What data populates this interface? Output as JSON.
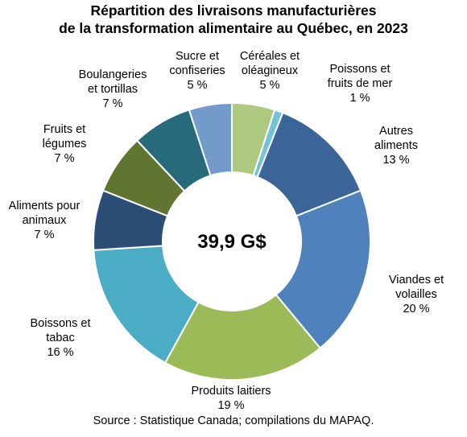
{
  "title_line1": "Répartition des livraisons manufacturières",
  "title_line2": "de la transformation alimentaire au Québec, en 2023",
  "source": "Source : Statistique Canada; compilations du MAPAQ.",
  "chart_data": {
    "type": "pie",
    "donut": true,
    "center_label": "39,9 G$",
    "start_angle_deg": 0,
    "direction": "clockwise",
    "slices": [
      {
        "label": [
          "Céréales et",
          "oléagineux",
          "5 %"
        ],
        "value": 5,
        "color": "#adc97f"
      },
      {
        "label": [
          "Poissons et",
          "fruits de mer",
          "1 %"
        ],
        "value": 1,
        "color": "#72c2d8"
      },
      {
        "label": [
          "Autres",
          "aliments",
          "13 %"
        ],
        "value": 13,
        "color": "#3b6499"
      },
      {
        "label": [
          "Viandes et",
          "volailles",
          "20 %"
        ],
        "value": 20,
        "color": "#4f81bd"
      },
      {
        "label": [
          "Produits laitiers",
          "19 %"
        ],
        "value": 19,
        "color": "#9bbb59"
      },
      {
        "label": [
          "Boissons et",
          "tabac",
          "16 %"
        ],
        "value": 16,
        "color": "#4bacc6"
      },
      {
        "label": [
          "Aliments pour",
          "animaux",
          "7 %"
        ],
        "value": 7,
        "color": "#2c4d75"
      },
      {
        "label": [
          "Fruits et",
          "légumes",
          "7 %"
        ],
        "value": 7,
        "color": "#5f7530"
      },
      {
        "label": [
          "Boulangeries",
          "et tortillas",
          "7 %"
        ],
        "value": 7,
        "color": "#276a7c"
      },
      {
        "label": [
          "Sucre et",
          "confiseries",
          "5 %"
        ],
        "value": 5,
        "color": "#729aca"
      }
    ]
  }
}
